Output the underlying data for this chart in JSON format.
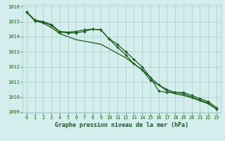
{
  "title": "Graphe pression niveau de la mer (hPa)",
  "bg_color": "#d4eeee",
  "grid_color": "#aacccc",
  "line_color": "#1a5c1a",
  "xlim": [
    -0.5,
    23.5
  ],
  "ylim": [
    1009,
    1016
  ],
  "yticks": [
    1009,
    1010,
    1011,
    1012,
    1013,
    1014,
    1015,
    1016
  ],
  "xticks": [
    0,
    1,
    2,
    3,
    4,
    5,
    6,
    7,
    8,
    9,
    10,
    11,
    12,
    13,
    14,
    15,
    16,
    17,
    18,
    19,
    20,
    21,
    22,
    23
  ],
  "line1": [
    1015.65,
    1015.1,
    1015.0,
    1014.8,
    1014.35,
    1014.3,
    1014.35,
    1014.45,
    1014.5,
    1014.45,
    1013.85,
    1013.5,
    1013.0,
    1012.5,
    1012.0,
    1011.3,
    1010.4,
    1010.3,
    1010.3,
    1010.3,
    1010.1,
    1009.9,
    1009.7,
    1009.3
  ],
  "line2": [
    1015.65,
    1015.05,
    1014.95,
    1014.75,
    1014.3,
    1014.25,
    1014.25,
    1014.35,
    1014.5,
    1014.45,
    1013.85,
    1013.3,
    1012.8,
    1012.2,
    1011.8,
    1011.1,
    1010.8,
    1010.5,
    1010.3,
    1010.2,
    1010.0,
    1009.8,
    1009.6,
    1009.2
  ],
  "line3": [
    1015.6,
    1015.05,
    1014.9,
    1014.6,
    1014.2,
    1014.0,
    1013.8,
    1013.7,
    1013.6,
    1013.5,
    1013.2,
    1012.9,
    1012.6,
    1012.2,
    1011.8,
    1011.3,
    1010.8,
    1010.4,
    1010.2,
    1010.1,
    1009.95,
    1009.75,
    1009.55,
    1009.2
  ],
  "tick_fontsize": 5.0,
  "title_fontsize": 6.0
}
